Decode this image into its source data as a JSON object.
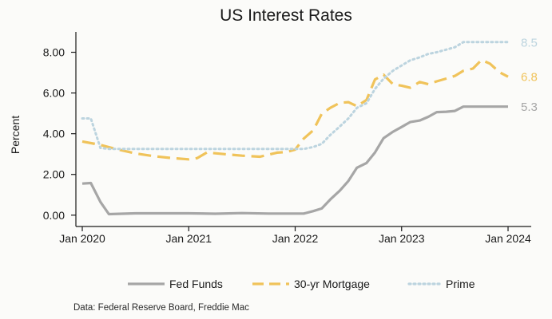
{
  "chart_data": {
    "type": "line",
    "title": "US Interest Rates",
    "ylabel": "Percent",
    "xlabel": "",
    "ylim": [
      0,
      9
    ],
    "yticks": [
      0,
      2,
      4,
      6,
      8
    ],
    "ytick_labels": [
      "0.00",
      "2.00",
      "4.00",
      "6.00",
      "8.00"
    ],
    "xlim": [
      2020.0,
      2024.2
    ],
    "xticks": [
      2020.0,
      2021.0,
      2022.0,
      2023.0,
      2024.0
    ],
    "xtick_labels": [
      "Jan 2020",
      "Jan 2021",
      "Jan 2022",
      "Jan 2023",
      "Jan 2024"
    ],
    "grid": false,
    "legend_position": "bottom",
    "source": "Data: Federal Reserve Board, Freddie Mac",
    "series": [
      {
        "name": "Fed Funds",
        "color": "#a6a6a6",
        "dash": "solid",
        "end_label": "5.3",
        "x": [
          2020.0,
          2020.08,
          2020.17,
          2020.25,
          2020.5,
          2020.75,
          2021.0,
          2021.25,
          2021.5,
          2021.75,
          2022.0,
          2022.08,
          2022.17,
          2022.25,
          2022.33,
          2022.42,
          2022.5,
          2022.58,
          2022.67,
          2022.75,
          2022.83,
          2022.92,
          2023.0,
          2023.08,
          2023.17,
          2023.25,
          2023.33,
          2023.42,
          2023.5,
          2023.58,
          2023.67,
          2023.75,
          2023.83,
          2023.92,
          2024.0
        ],
        "y": [
          1.55,
          1.58,
          0.65,
          0.05,
          0.09,
          0.09,
          0.09,
          0.07,
          0.1,
          0.08,
          0.08,
          0.08,
          0.2,
          0.33,
          0.77,
          1.21,
          1.68,
          2.33,
          2.56,
          3.08,
          3.78,
          4.1,
          4.33,
          4.57,
          4.65,
          4.83,
          5.06,
          5.08,
          5.12,
          5.33,
          5.33,
          5.33,
          5.33,
          5.33,
          5.33
        ]
      },
      {
        "name": "30-yr Mortgage",
        "color": "#f0c35a",
        "dash": "dashed",
        "end_label": "6.8",
        "x": [
          2020.0,
          2020.17,
          2020.33,
          2020.5,
          2020.67,
          2020.83,
          2021.0,
          2021.08,
          2021.17,
          2021.33,
          2021.5,
          2021.67,
          2021.83,
          2021.92,
          2022.0,
          2022.08,
          2022.17,
          2022.25,
          2022.33,
          2022.42,
          2022.5,
          2022.58,
          2022.67,
          2022.75,
          2022.83,
          2022.92,
          2023.0,
          2023.08,
          2023.17,
          2023.25,
          2023.33,
          2023.42,
          2023.5,
          2023.58,
          2023.67,
          2023.75,
          2023.83,
          2023.92,
          2024.0
        ],
        "y": [
          3.62,
          3.45,
          3.23,
          3.03,
          2.9,
          2.81,
          2.74,
          2.8,
          3.08,
          3.0,
          2.92,
          2.87,
          3.07,
          3.1,
          3.22,
          3.76,
          4.17,
          4.98,
          5.27,
          5.52,
          5.55,
          5.35,
          5.66,
          6.66,
          6.9,
          6.42,
          6.36,
          6.26,
          6.54,
          6.43,
          6.57,
          6.71,
          6.84,
          7.09,
          7.2,
          7.62,
          7.44,
          7.02,
          6.8
        ]
      },
      {
        "name": "Prime",
        "color": "#bcd4df",
        "dash": "dotted",
        "end_label": "8.5",
        "x": [
          2020.0,
          2020.08,
          2020.17,
          2020.25,
          2020.5,
          2020.75,
          2021.0,
          2021.5,
          2021.9,
          2022.0,
          2022.08,
          2022.17,
          2022.25,
          2022.33,
          2022.42,
          2022.5,
          2022.58,
          2022.67,
          2022.75,
          2022.83,
          2022.92,
          2023.0,
          2023.08,
          2023.17,
          2023.25,
          2023.33,
          2023.42,
          2023.5,
          2023.58,
          2023.67,
          2023.75,
          2023.83,
          2023.92,
          2024.0
        ],
        "y": [
          4.75,
          4.75,
          3.3,
          3.25,
          3.25,
          3.25,
          3.25,
          3.25,
          3.25,
          3.25,
          3.25,
          3.35,
          3.5,
          3.94,
          4.36,
          4.75,
          5.27,
          5.5,
          6.2,
          6.7,
          7.1,
          7.35,
          7.6,
          7.75,
          7.92,
          8.0,
          8.13,
          8.25,
          8.5,
          8.5,
          8.5,
          8.5,
          8.5,
          8.5
        ]
      }
    ]
  }
}
